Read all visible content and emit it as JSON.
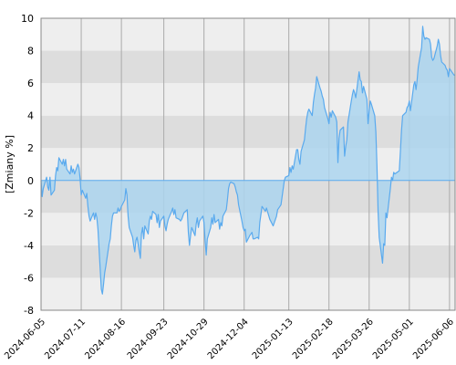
{
  "chart_data": {
    "type": "area",
    "title": "",
    "xlabel": "",
    "ylabel": "[Zmiany %]",
    "ylim": [
      -8,
      10
    ],
    "yticks": [
      "10",
      "8",
      "6",
      "4",
      "2",
      "0",
      "-2",
      "-4",
      "-6",
      "-8"
    ],
    "xlim": [
      "2024-06-05",
      "2025-06-11"
    ],
    "xticks": [
      "2024-06-05",
      "2024-07-11",
      "2024-08-16",
      "2024-09-23",
      "2024-10-29",
      "2024-12-04",
      "2025-01-13",
      "2025-02-18",
      "2025-03-26",
      "2025-05-01",
      "2025-06-06"
    ],
    "grid": true,
    "colors": {
      "line": "#5aaaee",
      "fill": "#abd5ee",
      "band_light": "#eeeeee",
      "band_dark": "#dddddd",
      "gridline": "#aaaaaa",
      "zero_line": "#5aaaee"
    },
    "series": [
      {
        "values": [
          [
            "2024-06-05",
            0.0
          ],
          [
            "2024-06-06",
            -1.0
          ],
          [
            "2024-06-07",
            -0.5
          ],
          [
            "2024-06-10",
            0.2
          ],
          [
            "2024-06-11",
            -0.4
          ],
          [
            "2024-06-12",
            -0.6
          ],
          [
            "2024-06-13",
            0.2
          ],
          [
            "2024-06-14",
            -0.9
          ],
          [
            "2024-06-17",
            -0.6
          ],
          [
            "2024-06-18",
            0.3
          ],
          [
            "2024-06-19",
            0.8
          ],
          [
            "2024-06-20",
            0.6
          ],
          [
            "2024-06-21",
            1.4
          ],
          [
            "2024-06-24",
            1.0
          ],
          [
            "2024-06-25",
            1.3
          ],
          [
            "2024-06-26",
            0.9
          ],
          [
            "2024-06-27",
            1.3
          ],
          [
            "2024-06-28",
            0.7
          ],
          [
            "2024-07-01",
            0.4
          ],
          [
            "2024-07-02",
            0.9
          ],
          [
            "2024-07-03",
            0.5
          ],
          [
            "2024-07-04",
            0.7
          ],
          [
            "2024-07-05",
            0.4
          ],
          [
            "2024-07-08",
            1.0
          ],
          [
            "2024-07-09",
            0.8
          ],
          [
            "2024-07-10",
            0.1
          ],
          [
            "2024-07-11",
            -0.9
          ],
          [
            "2024-07-12",
            -0.6
          ],
          [
            "2024-07-15",
            -1.1
          ],
          [
            "2024-07-16",
            -0.8
          ],
          [
            "2024-07-17",
            -1.6
          ],
          [
            "2024-07-18",
            -2.2
          ],
          [
            "2024-07-19",
            -2.5
          ],
          [
            "2024-07-22",
            -2.0
          ],
          [
            "2024-07-23",
            -2.4
          ],
          [
            "2024-07-24",
            -2.0
          ],
          [
            "2024-07-25",
            -2.3
          ],
          [
            "2024-07-26",
            -3.0
          ],
          [
            "2024-07-29",
            -6.7
          ],
          [
            "2024-07-30",
            -7.0
          ],
          [
            "2024-07-31",
            -6.4
          ],
          [
            "2024-08-01",
            -5.7
          ],
          [
            "2024-08-02",
            -5.3
          ],
          [
            "2024-08-05",
            -3.9
          ],
          [
            "2024-08-06",
            -3.6
          ],
          [
            "2024-08-07",
            -2.8
          ],
          [
            "2024-08-08",
            -2.2
          ],
          [
            "2024-08-09",
            -2.0
          ],
          [
            "2024-08-12",
            -2.0
          ],
          [
            "2024-08-13",
            -1.7
          ],
          [
            "2024-08-14",
            -1.9
          ],
          [
            "2024-08-15",
            -1.8
          ],
          [
            "2024-08-16",
            -1.6
          ],
          [
            "2024-08-19",
            -1.2
          ],
          [
            "2024-08-20",
            -0.5
          ],
          [
            "2024-08-21",
            -0.9
          ],
          [
            "2024-08-22",
            -2.2
          ],
          [
            "2024-08-23",
            -2.9
          ],
          [
            "2024-08-26",
            -3.5
          ],
          [
            "2024-08-27",
            -4.0
          ],
          [
            "2024-08-28",
            -4.4
          ],
          [
            "2024-08-29",
            -3.7
          ],
          [
            "2024-08-30",
            -3.5
          ],
          [
            "2024-09-02",
            -4.8
          ],
          [
            "2024-09-03",
            -3.3
          ],
          [
            "2024-09-04",
            -2.9
          ],
          [
            "2024-09-05",
            -3.6
          ],
          [
            "2024-09-06",
            -2.8
          ],
          [
            "2024-09-09",
            -3.3
          ],
          [
            "2024-09-10",
            -2.5
          ],
          [
            "2024-09-11",
            -2.2
          ],
          [
            "2024-09-12",
            -2.4
          ],
          [
            "2024-09-13",
            -1.9
          ],
          [
            "2024-09-16",
            -2.1
          ],
          [
            "2024-09-17",
            -2.6
          ],
          [
            "2024-09-18",
            -2.1
          ],
          [
            "2024-09-19",
            -2.9
          ],
          [
            "2024-09-20",
            -2.5
          ],
          [
            "2024-09-23",
            -2.2
          ],
          [
            "2024-09-24",
            -2.8
          ],
          [
            "2024-09-25",
            -3.1
          ],
          [
            "2024-09-26",
            -2.7
          ],
          [
            "2024-09-27",
            -2.4
          ],
          [
            "2024-09-30",
            -1.9
          ],
          [
            "2024-10-01",
            -1.7
          ],
          [
            "2024-10-02",
            -2.1
          ],
          [
            "2024-10-03",
            -1.8
          ],
          [
            "2024-10-04",
            -2.3
          ],
          [
            "2024-10-07",
            -2.4
          ],
          [
            "2024-10-08",
            -2.5
          ],
          [
            "2024-10-09",
            -2.4
          ],
          [
            "2024-10-10",
            -2.2
          ],
          [
            "2024-10-11",
            -2.0
          ],
          [
            "2024-10-14",
            -1.8
          ],
          [
            "2024-10-15",
            -3.2
          ],
          [
            "2024-10-16",
            -4.0
          ],
          [
            "2024-10-17",
            -3.4
          ],
          [
            "2024-10-18",
            -2.9
          ],
          [
            "2024-10-21",
            -3.4
          ],
          [
            "2024-10-22",
            -2.7
          ],
          [
            "2024-10-23",
            -2.3
          ],
          [
            "2024-10-24",
            -2.9
          ],
          [
            "2024-10-25",
            -2.5
          ],
          [
            "2024-10-28",
            -2.2
          ],
          [
            "2024-10-29",
            -2.6
          ],
          [
            "2024-10-30",
            -3.7
          ],
          [
            "2024-10-31",
            -4.6
          ],
          [
            "2024-11-01",
            -3.6
          ],
          [
            "2024-11-04",
            -2.9
          ],
          [
            "2024-11-05",
            -2.3
          ],
          [
            "2024-11-06",
            -2.7
          ],
          [
            "2024-11-07",
            -2.1
          ],
          [
            "2024-11-08",
            -2.6
          ],
          [
            "2024-11-11",
            -2.4
          ],
          [
            "2024-11-12",
            -3.0
          ],
          [
            "2024-11-13",
            -2.6
          ],
          [
            "2024-11-14",
            -2.8
          ],
          [
            "2024-11-15",
            -2.2
          ],
          [
            "2024-11-18",
            -1.8
          ],
          [
            "2024-11-19",
            -1.2
          ],
          [
            "2024-11-20",
            -0.5
          ],
          [
            "2024-11-21",
            -0.2
          ],
          [
            "2024-11-22",
            -0.1
          ],
          [
            "2024-11-25",
            -0.2
          ],
          [
            "2024-11-26",
            -0.4
          ],
          [
            "2024-11-27",
            -0.7
          ],
          [
            "2024-11-28",
            -0.9
          ],
          [
            "2024-11-29",
            -1.5
          ],
          [
            "2024-12-02",
            -2.5
          ],
          [
            "2024-12-03",
            -2.9
          ],
          [
            "2024-12-04",
            -3.1
          ],
          [
            "2024-12-05",
            -3.0
          ],
          [
            "2024-12-06",
            -3.8
          ],
          [
            "2024-12-09",
            -3.4
          ],
          [
            "2024-12-10",
            -3.3
          ],
          [
            "2024-12-11",
            -3.2
          ],
          [
            "2024-12-12",
            -3.6
          ],
          [
            "2024-12-13",
            -3.6
          ],
          [
            "2024-12-16",
            -3.5
          ],
          [
            "2024-12-17",
            -3.6
          ],
          [
            "2024-12-18",
            -2.6
          ],
          [
            "2024-12-19",
            -2.1
          ],
          [
            "2024-12-20",
            -1.6
          ],
          [
            "2024-12-23",
            -1.9
          ],
          [
            "2024-12-24",
            -1.7
          ],
          [
            "2024-12-27",
            -2.4
          ],
          [
            "2024-12-30",
            -2.8
          ],
          [
            "2025-01-02",
            -2.2
          ],
          [
            "2025-01-03",
            -1.8
          ],
          [
            "2025-01-06",
            -1.5
          ],
          [
            "2025-01-07",
            -1.0
          ],
          [
            "2025-01-08",
            -0.5
          ],
          [
            "2025-01-09",
            0.0
          ],
          [
            "2025-01-10",
            0.2
          ],
          [
            "2025-01-13",
            0.3
          ],
          [
            "2025-01-14",
            0.8
          ],
          [
            "2025-01-15",
            0.5
          ],
          [
            "2025-01-16",
            0.9
          ],
          [
            "2025-01-17",
            0.7
          ],
          [
            "2025-01-20",
            1.9
          ],
          [
            "2025-01-21",
            1.9
          ],
          [
            "2025-01-22",
            1.3
          ],
          [
            "2025-01-23",
            1.0
          ],
          [
            "2025-01-24",
            1.8
          ],
          [
            "2025-01-27",
            2.5
          ],
          [
            "2025-01-28",
            3.2
          ],
          [
            "2025-01-29",
            3.8
          ],
          [
            "2025-01-30",
            4.2
          ],
          [
            "2025-01-31",
            4.4
          ],
          [
            "2025-02-03",
            4.0
          ],
          [
            "2025-02-04",
            4.8
          ],
          [
            "2025-02-05",
            5.3
          ],
          [
            "2025-02-06",
            5.7
          ],
          [
            "2025-02-07",
            6.4
          ],
          [
            "2025-02-10",
            5.7
          ],
          [
            "2025-02-11",
            5.5
          ],
          [
            "2025-02-12",
            5.2
          ],
          [
            "2025-02-13",
            5.0
          ],
          [
            "2025-02-14",
            4.5
          ],
          [
            "2025-02-17",
            3.8
          ],
          [
            "2025-02-18",
            3.5
          ],
          [
            "2025-02-19",
            4.2
          ],
          [
            "2025-02-20",
            3.9
          ],
          [
            "2025-02-21",
            4.3
          ],
          [
            "2025-02-24",
            3.9
          ],
          [
            "2025-02-25",
            3.6
          ],
          [
            "2025-02-26",
            1.1
          ],
          [
            "2025-02-27",
            2.6
          ],
          [
            "2025-02-28",
            3.1
          ],
          [
            "2025-03-03",
            3.3
          ],
          [
            "2025-03-04",
            1.5
          ],
          [
            "2025-03-05",
            2.1
          ],
          [
            "2025-03-06",
            2.5
          ],
          [
            "2025-03-07",
            3.6
          ],
          [
            "2025-03-10",
            4.9
          ],
          [
            "2025-03-11",
            5.3
          ],
          [
            "2025-03-12",
            5.6
          ],
          [
            "2025-03-13",
            5.4
          ],
          [
            "2025-03-14",
            5.1
          ],
          [
            "2025-03-17",
            6.7
          ],
          [
            "2025-03-18",
            6.2
          ],
          [
            "2025-03-19",
            6.1
          ],
          [
            "2025-03-20",
            5.4
          ],
          [
            "2025-03-21",
            5.8
          ],
          [
            "2025-03-24",
            5.0
          ],
          [
            "2025-03-25",
            3.5
          ],
          [
            "2025-03-26",
            4.3
          ],
          [
            "2025-03-27",
            4.9
          ],
          [
            "2025-03-28",
            4.7
          ],
          [
            "2025-03-31",
            4.0
          ],
          [
            "2025-04-01",
            3.0
          ],
          [
            "2025-04-02",
            0.9
          ],
          [
            "2025-04-03",
            -1.9
          ],
          [
            "2025-04-04",
            -3.5
          ],
          [
            "2025-04-07",
            -5.1
          ],
          [
            "2025-04-08",
            -3.9
          ],
          [
            "2025-04-09",
            -4.0
          ],
          [
            "2025-04-10",
            -2.0
          ],
          [
            "2025-04-11",
            -2.3
          ],
          [
            "2025-04-14",
            -0.5
          ],
          [
            "2025-04-15",
            0.2
          ],
          [
            "2025-04-16",
            0.0
          ],
          [
            "2025-04-17",
            0.5
          ],
          [
            "2025-04-18",
            0.4
          ],
          [
            "2025-04-22",
            0.6
          ],
          [
            "2025-04-23",
            1.8
          ],
          [
            "2025-04-24",
            3.1
          ],
          [
            "2025-04-25",
            4.0
          ],
          [
            "2025-04-28",
            4.2
          ],
          [
            "2025-04-29",
            4.5
          ],
          [
            "2025-04-30",
            4.6
          ],
          [
            "2025-05-01",
            4.9
          ],
          [
            "2025-05-02",
            4.3
          ],
          [
            "2025-05-05",
            5.9
          ],
          [
            "2025-05-06",
            6.1
          ],
          [
            "2025-05-07",
            5.6
          ],
          [
            "2025-05-08",
            6.2
          ],
          [
            "2025-05-09",
            7.0
          ],
          [
            "2025-05-12",
            8.2
          ],
          [
            "2025-05-13",
            9.5
          ],
          [
            "2025-05-14",
            8.9
          ],
          [
            "2025-05-15",
            8.7
          ],
          [
            "2025-05-16",
            8.8
          ],
          [
            "2025-05-19",
            8.7
          ],
          [
            "2025-05-20",
            8.4
          ],
          [
            "2025-05-21",
            7.6
          ],
          [
            "2025-05-22",
            7.4
          ],
          [
            "2025-05-23",
            7.5
          ],
          [
            "2025-05-26",
            8.3
          ],
          [
            "2025-05-27",
            8.7
          ],
          [
            "2025-05-28",
            8.4
          ],
          [
            "2025-05-29",
            7.7
          ],
          [
            "2025-05-30",
            7.3
          ],
          [
            "2025-06-02",
            7.1
          ],
          [
            "2025-06-03",
            6.9
          ],
          [
            "2025-06-04",
            6.8
          ],
          [
            "2025-06-05",
            6.4
          ],
          [
            "2025-06-06",
            6.9
          ],
          [
            "2025-06-09",
            6.6
          ],
          [
            "2025-06-10",
            6.5
          ],
          [
            "2025-06-11",
            6.5
          ]
        ]
      }
    ]
  }
}
